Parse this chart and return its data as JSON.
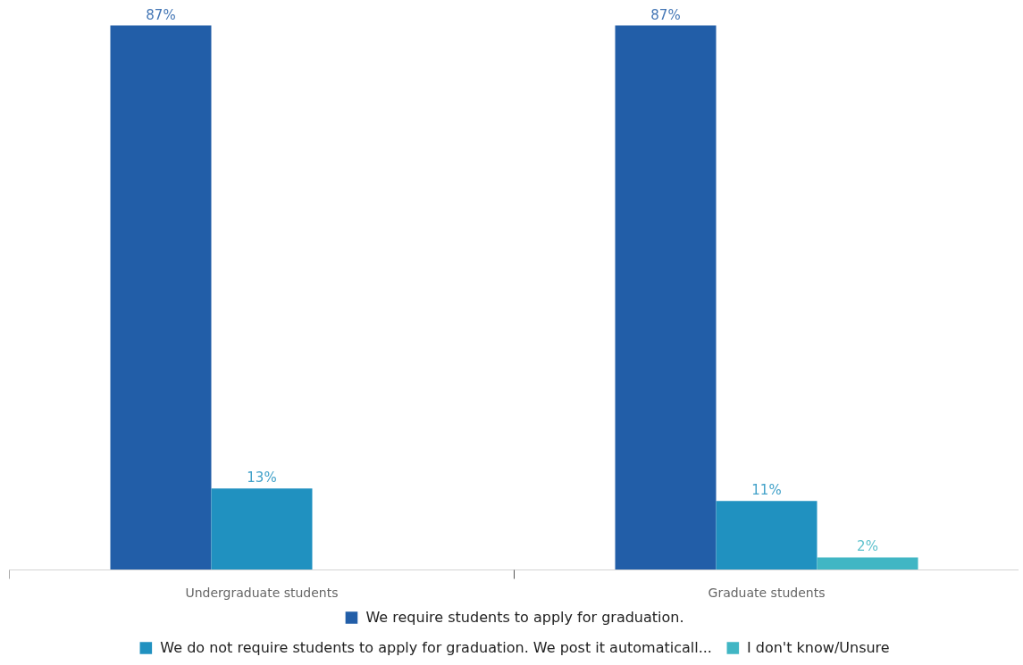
{
  "chart_data": {
    "type": "bar",
    "categories": [
      "Undergraduate students",
      "Graduate students"
    ],
    "series": [
      {
        "name": "We require students to apply for graduation.",
        "color": "#225ea8",
        "values": [
          87,
          87
        ],
        "value_labels": [
          "87%",
          "87%"
        ]
      },
      {
        "name": "We do not require students to apply for graduation. We post it automaticall...",
        "color": "#2091c0",
        "values": [
          13,
          11
        ],
        "value_labels": [
          "13%",
          "11%"
        ]
      },
      {
        "name": "I don't know/Unsure",
        "color": "#41b6c4",
        "values": [
          null,
          2
        ],
        "value_labels": [
          null,
          "2%"
        ]
      }
    ],
    "legend": "bottom"
  }
}
